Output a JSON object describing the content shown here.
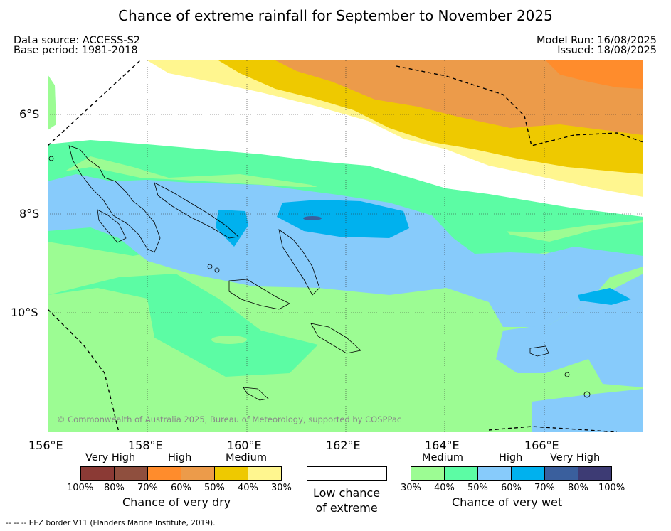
{
  "title": "Chance of extreme rainfall for September to November 2025",
  "data_source": "Data source: ACCESS-S2",
  "base_period": "Base period: 1981-2018",
  "model_run": "Model Run: 16/08/2025",
  "issued": "Issued: 18/08/2025",
  "map": {
    "lat_labels": [
      "6°S",
      "8°S",
      "10°S"
    ],
    "lon_labels": [
      "156°E",
      "158°E",
      "160°E",
      "162°E",
      "164°E",
      "166°E"
    ],
    "copyright": "© Commonwealth of Australia 2025, Bureau of Meteorology, supported by COSPPac"
  },
  "legend": {
    "dry": {
      "categories": [
        "Very High",
        "High",
        "Medium"
      ],
      "colors": [
        "#8b3a35",
        "#8f4f3e",
        "#ff8c2c",
        "#ec9b4a",
        "#eec900",
        "#fff68f"
      ],
      "percent_labels": [
        "100%",
        "80%",
        "70%",
        "60%",
        "50%",
        "40%",
        "30%"
      ],
      "caption": "Chance of very dry"
    },
    "neutral": {
      "color": "#ffffff",
      "caption": "Low chance of extreme"
    },
    "wet": {
      "categories": [
        "Medium",
        "High",
        "Very High"
      ],
      "colors": [
        "#9cfc93",
        "#5cfca4",
        "#87cbfb",
        "#00b1ee",
        "#3a5f9d",
        "#3d3b74"
      ],
      "percent_labels": [
        "30%",
        "40%",
        "50%",
        "60%",
        "70%",
        "80%",
        "100%"
      ],
      "caption": "Chance of very wet"
    }
  },
  "footnote": "--  --  -- EEZ border V11 (Flanders Marine Institute, 2019)."
}
